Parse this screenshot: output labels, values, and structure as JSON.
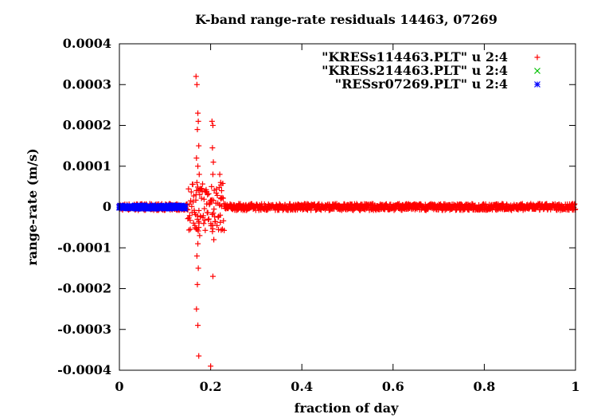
{
  "chart_data": {
    "type": "scatter",
    "title": "K-band range-rate residuals 14463, 07269",
    "xlabel": "fraction of day",
    "ylabel": "range-rate (m/s)",
    "xlim": [
      0,
      1
    ],
    "ylim": [
      -0.0004,
      0.0004
    ],
    "x_ticks": [
      0,
      0.2,
      0.4,
      0.6,
      0.8,
      1
    ],
    "x_tick_labels": [
      "0",
      "0.2",
      "0.4",
      "0.6",
      "0.8",
      "1"
    ],
    "y_ticks": [
      -0.0004,
      -0.0003,
      -0.0002,
      -0.0001,
      0,
      0.0001,
      0.0002,
      0.0003,
      0.0004
    ],
    "y_tick_labels": [
      "-0.0004",
      "-0.0003",
      "-0.0002",
      "-0.0001",
      "0",
      "0.0001",
      "0.0002",
      "0.0003",
      "0.0004"
    ],
    "grid": false,
    "legend_position": "top-right",
    "series": [
      {
        "name": "\"KRESs114463.PLT\" u 2:4",
        "marker": "plus",
        "color": "#ff0000",
        "x": [
          0.168,
          0.17,
          0.172,
          0.173,
          0.171,
          0.174,
          0.169,
          0.172,
          0.175,
          0.17,
          0.173,
          0.168,
          0.171,
          0.174,
          0.176,
          0.172,
          0.17,
          0.173,
          0.171,
          0.169,
          0.172,
          0.174,
          0.203,
          0.205,
          0.204,
          0.206,
          0.205,
          0.204,
          0.205,
          0.2,
          0.202,
          0.207,
          0.22,
          0.222,
          0.224,
          0.221,
          0.223
        ],
        "y": [
          0.00032,
          0.0003,
          0.00023,
          0.00021,
          0.00019,
          0.00015,
          0.00012,
          0.0001,
          8e-05,
          6e-05,
          4e-05,
          3e-05,
          -3e-05,
          -5e-05,
          -7e-05,
          -9e-05,
          -0.00012,
          -0.00015,
          -0.00019,
          -0.00025,
          -0.00029,
          -0.000365,
          0.00021,
          0.0002,
          0.000145,
          0.00011,
          8e-05,
          -6e-05,
          -0.00017,
          -0.00039,
          5e-05,
          -8e-05,
          8e-05,
          6e-05,
          4e-05,
          -2e-05,
          2e-05
        ]
      },
      {
        "name": "\"KRESs214463.PLT\" u 2:4",
        "marker": "cross",
        "color": "#00c000",
        "x": [],
        "y": []
      },
      {
        "name": "\"RESsr07269.PLT\" u 2:4",
        "marker": "star",
        "color": "#0000ff",
        "x": [
          0.0,
          0.02,
          0.04,
          0.06,
          0.08,
          0.1,
          0.12,
          0.14
        ],
        "y": [
          0.0,
          0.0,
          0.0,
          0.0,
          0.0,
          0.0,
          0.0,
          0.0
        ]
      }
    ],
    "residual_bands": [
      {
        "series": 0,
        "x_range": [
          0.0,
          0.15
        ],
        "amplitude": 8e-06
      },
      {
        "series": 0,
        "x_range": [
          0.15,
          0.23
        ],
        "amplitude": 6e-05
      },
      {
        "series": 0,
        "x_range": [
          0.23,
          1.0
        ],
        "amplitude": 8e-06
      },
      {
        "series": 2,
        "x_range": [
          0.0,
          0.145
        ],
        "amplitude": 4e-06
      }
    ]
  }
}
